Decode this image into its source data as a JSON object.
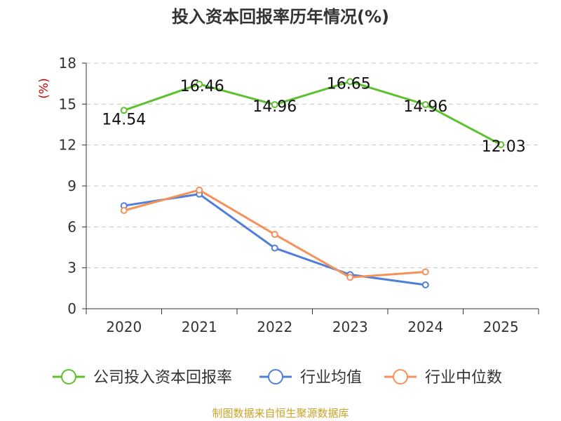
{
  "source_note": "制图数据来自恒生聚源数据库",
  "chart_data": {
    "type": "line",
    "title": "投入资本回报率历年情况(%)",
    "ylabel": "(%)",
    "xlabel": "",
    "categories": [
      "2020",
      "2021",
      "2022",
      "2023",
      "2024",
      "2025"
    ],
    "ylim": [
      0,
      18
    ],
    "yticks": [
      0,
      3,
      6,
      9,
      12,
      15,
      18
    ],
    "grid": true,
    "legend_position": "bottom",
    "series": [
      {
        "name": "公司投入资本回报率",
        "color": "#5cc12f",
        "values": [
          14.54,
          16.46,
          14.96,
          16.65,
          14.96,
          12.03
        ],
        "labels": [
          "14.54",
          "16.46",
          "14.96",
          "16.65",
          "14.96",
          "12.03"
        ],
        "show_labels": true
      },
      {
        "name": "行业均值",
        "color": "#4f7fd9",
        "values": [
          7.55,
          8.4,
          4.45,
          2.5,
          1.75,
          null
        ],
        "show_labels": false
      },
      {
        "name": "行业中位数",
        "color": "#f5915a",
        "values": [
          7.2,
          8.7,
          5.45,
          2.3,
          2.7,
          null
        ],
        "show_labels": false
      }
    ],
    "ylabel_color": "#cc0000"
  }
}
